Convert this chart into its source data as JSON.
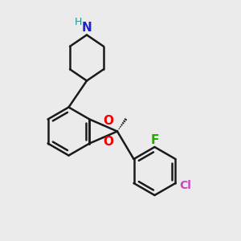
{
  "background_color": "#ebebeb",
  "bond_color": "#1a1a1a",
  "N_color": "#2222cc",
  "H_color": "#2a9090",
  "O_color": "#ee0000",
  "F_color": "#22aa00",
  "Cl_color": "#cc44bb",
  "bond_width": 1.8,
  "figsize": [
    3.0,
    3.0
  ],
  "dpi": 100,
  "xlim": [
    0,
    10
  ],
  "ylim": [
    0,
    10
  ]
}
